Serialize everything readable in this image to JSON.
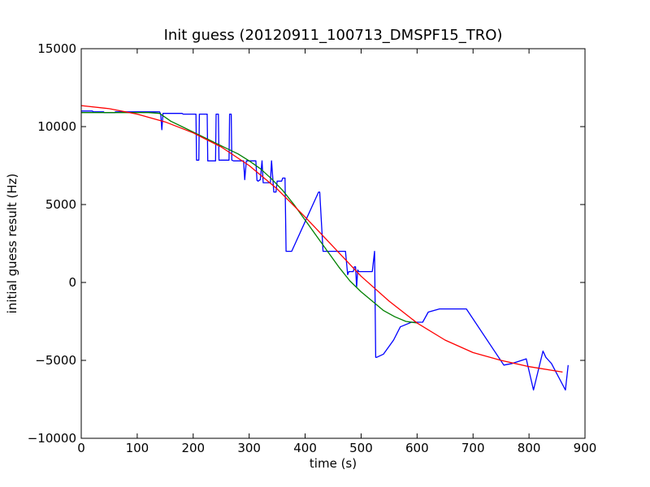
{
  "chart_data": {
    "type": "line",
    "title": "Init guess (20120911_100713_DMSPF15_TRO)",
    "xlabel": "time (s)",
    "ylabel": "initial guess result (Hz)",
    "xlim": [
      0,
      900
    ],
    "ylim": [
      -10000,
      15000
    ],
    "xticks": [
      "0",
      "100",
      "200",
      "300",
      "400",
      "500",
      "600",
      "700",
      "800",
      "900"
    ],
    "yticks": [
      "−10000",
      "−5000",
      "0",
      "5000",
      "10000",
      "15000"
    ],
    "xtick_values": [
      0,
      100,
      200,
      300,
      400,
      500,
      600,
      700,
      800,
      900
    ],
    "ytick_values": [
      -10000,
      -5000,
      0,
      5000,
      10000,
      15000
    ],
    "grid": false,
    "series": [
      {
        "color": "#0000ff",
        "x": [
          0,
          20,
          21,
          40,
          41,
          60,
          61,
          140,
          142,
          144,
          146,
          148,
          180,
          182,
          205,
          206,
          210,
          211,
          225,
          226,
          240,
          241,
          245,
          246,
          264,
          265,
          268,
          269,
          272,
          290,
          292,
          295,
          298,
          300,
          312,
          314,
          316,
          320,
          323,
          325,
          328,
          330,
          335,
          338,
          340,
          344,
          346,
          348,
          350,
          356,
          358,
          360,
          364,
          366,
          368,
          374,
          376,
          424,
          426,
          432,
          434,
          448,
          450,
          460,
          462,
          470,
          472,
          476,
          478,
          486,
          488,
          490,
          492,
          494,
          496,
          498,
          520,
          524,
          526,
          528,
          540,
          558,
          570,
          580,
          590,
          610,
          620,
          640,
          688,
          755,
          770,
          795,
          808,
          825,
          830,
          835,
          840,
          865,
          870
        ],
        "y": [
          11000,
          11000,
          10950,
          10950,
          10900,
          10900,
          10950,
          10950,
          10800,
          9800,
          10850,
          10850,
          10850,
          10800,
          10800,
          7850,
          7850,
          10800,
          10800,
          7800,
          7800,
          10800,
          10800,
          7850,
          7850,
          10800,
          10800,
          7850,
          7800,
          7800,
          6600,
          7800,
          7800,
          7800,
          7800,
          6550,
          6500,
          6600,
          7800,
          6400,
          6400,
          6400,
          6400,
          6400,
          7800,
          5800,
          5800,
          5800,
          6500,
          6500,
          6500,
          6700,
          6700,
          2000,
          2000,
          2000,
          2000,
          5800,
          5800,
          2000,
          2000,
          2000,
          2000,
          2000,
          2000,
          2000,
          2000,
          500,
          700,
          700,
          1000,
          1000,
          -300,
          800,
          700,
          700,
          700,
          2000,
          -4800,
          -4800,
          -4600,
          -3700,
          -2850,
          -2700,
          -2550,
          -2550,
          -1900,
          -1700,
          -1700,
          -5300,
          -5200,
          -4900,
          -6900,
          -4400,
          -4800,
          -5000,
          -5200,
          -6900,
          -5300
        ]
      },
      {
        "color": "#008000",
        "x": [
          0,
          20,
          40,
          60,
          80,
          100,
          120,
          140,
          160,
          180,
          200,
          220,
          240,
          260,
          280,
          300,
          320,
          340,
          360,
          380,
          400,
          420,
          440,
          460,
          480,
          500,
          520,
          540,
          560,
          580,
          600
        ],
        "y": [
          10900,
          10900,
          10900,
          10900,
          10900,
          10900,
          10900,
          10850,
          10350,
          10000,
          9650,
          9300,
          8950,
          8600,
          8250,
          7800,
          7300,
          6650,
          5900,
          5000,
          4000,
          3000,
          2000,
          1000,
          100,
          -600,
          -1200,
          -1800,
          -2200,
          -2500,
          -2600
        ]
      },
      {
        "color": "#ff0000",
        "x": [
          0,
          50,
          100,
          150,
          200,
          250,
          300,
          350,
          400,
          450,
          500,
          550,
          600,
          650,
          700,
          750,
          800,
          860
        ],
        "y": [
          11350,
          11150,
          10800,
          10300,
          9600,
          8700,
          7500,
          6000,
          4200,
          2300,
          400,
          -1200,
          -2600,
          -3700,
          -4500,
          -5000,
          -5400,
          -5750
        ]
      }
    ]
  }
}
